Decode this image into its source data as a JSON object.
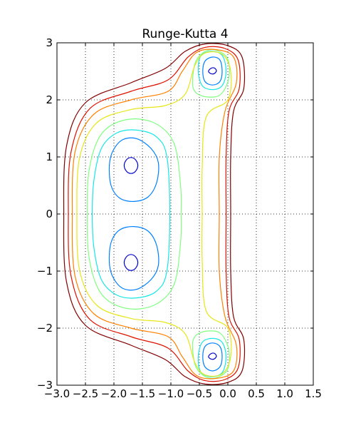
{
  "chart_data": {
    "type": "contour",
    "title": "Runge-Kutta 4",
    "xlabel": "",
    "ylabel": "",
    "xlim": [
      -3.0,
      1.5
    ],
    "ylim": [
      -3,
      3
    ],
    "grid": true,
    "grid_style": "dotted",
    "xticks": [
      -3.0,
      -2.5,
      -2.0,
      -1.5,
      -1.0,
      -0.5,
      0.0,
      0.5,
      1.0,
      1.5
    ],
    "xtick_labels": [
      "−3.0",
      "−2.5",
      "−2.0",
      "−1.5",
      "−1.0",
      "−0.5",
      "0.0",
      "0.5",
      "1.0",
      "1.5"
    ],
    "yticks": [
      -3,
      -2,
      -1,
      0,
      1,
      2,
      3
    ],
    "ytick_labels": [
      "−3",
      "−2",
      "−1",
      "0",
      "1",
      "2",
      "3"
    ],
    "colormap": "jet",
    "level_colors": [
      "#0000cd",
      "#0080ff",
      "#19e6e6",
      "#80ff80",
      "#e6e619",
      "#ff8000",
      "#dd1100",
      "#800000"
    ],
    "centers": [
      {
        "x": -1.7,
        "y": 0.85
      },
      {
        "x": -1.7,
        "y": -0.85
      },
      {
        "x": -0.27,
        "y": 2.5
      },
      {
        "x": -0.27,
        "y": -2.5
      }
    ],
    "contours": [
      {
        "level": 1,
        "color": "#0000cd",
        "points": [
          [
            -1.82,
            0.85
          ],
          [
            -1.78,
            0.95
          ],
          [
            -1.7,
            0.99
          ],
          [
            -1.62,
            0.95
          ],
          [
            -1.58,
            0.85
          ],
          [
            -1.62,
            0.75
          ],
          [
            -1.7,
            0.71
          ],
          [
            -1.78,
            0.75
          ]
        ]
      },
      {
        "level": 1,
        "color": "#0000cd",
        "points": [
          [
            -1.82,
            -0.85
          ],
          [
            -1.78,
            -0.75
          ],
          [
            -1.7,
            -0.71
          ],
          [
            -1.62,
            -0.75
          ],
          [
            -1.58,
            -0.85
          ],
          [
            -1.62,
            -0.95
          ],
          [
            -1.7,
            -0.99
          ],
          [
            -1.78,
            -0.95
          ]
        ]
      },
      {
        "level": 1,
        "color": "#0000cd",
        "points": [
          [
            -0.34,
            2.5
          ],
          [
            -0.3,
            2.55
          ],
          [
            -0.24,
            2.56
          ],
          [
            -0.2,
            2.51
          ],
          [
            -0.24,
            2.46
          ],
          [
            -0.3,
            2.46
          ]
        ]
      },
      {
        "level": 1,
        "color": "#0000cd",
        "points": [
          [
            -0.34,
            -2.5
          ],
          [
            -0.3,
            -2.45
          ],
          [
            -0.24,
            -2.44
          ],
          [
            -0.2,
            -2.49
          ],
          [
            -0.24,
            -2.54
          ],
          [
            -0.3,
            -2.54
          ]
        ]
      },
      {
        "level": 2,
        "color": "#0080ff",
        "points": [
          [
            -2.08,
            0.85
          ],
          [
            -2.02,
            1.1
          ],
          [
            -1.85,
            1.3
          ],
          [
            -1.6,
            1.32
          ],
          [
            -1.35,
            1.15
          ],
          [
            -1.22,
            0.9
          ],
          [
            -1.25,
            0.55
          ],
          [
            -1.4,
            0.3
          ],
          [
            -1.65,
            0.22
          ],
          [
            -1.9,
            0.28
          ],
          [
            -2.05,
            0.5
          ]
        ]
      },
      {
        "level": 2,
        "color": "#0080ff",
        "points": [
          [
            -2.08,
            -0.85
          ],
          [
            -2.05,
            -0.5
          ],
          [
            -1.9,
            -0.28
          ],
          [
            -1.65,
            -0.22
          ],
          [
            -1.4,
            -0.3
          ],
          [
            -1.25,
            -0.55
          ],
          [
            -1.22,
            -0.9
          ],
          [
            -1.35,
            -1.15
          ],
          [
            -1.6,
            -1.32
          ],
          [
            -1.85,
            -1.3
          ],
          [
            -2.02,
            -1.1
          ]
        ]
      },
      {
        "level": 2,
        "color": "#0080ff",
        "points": [
          [
            -0.44,
            2.5
          ],
          [
            -0.4,
            2.68
          ],
          [
            -0.27,
            2.75
          ],
          [
            -0.14,
            2.7
          ],
          [
            -0.1,
            2.5
          ],
          [
            -0.14,
            2.32
          ],
          [
            -0.27,
            2.26
          ],
          [
            -0.4,
            2.32
          ]
        ]
      },
      {
        "level": 2,
        "color": "#0080ff",
        "points": [
          [
            -0.44,
            -2.5
          ],
          [
            -0.4,
            -2.32
          ],
          [
            -0.27,
            -2.26
          ],
          [
            -0.14,
            -2.32
          ],
          [
            -0.1,
            -2.5
          ],
          [
            -0.14,
            -2.68
          ],
          [
            -0.27,
            -2.75
          ],
          [
            -0.4,
            -2.68
          ]
        ]
      },
      {
        "level": 3,
        "color": "#19e6e6",
        "points": [
          [
            -2.38,
            0.0
          ],
          [
            -2.35,
            0.6
          ],
          [
            -2.22,
            1.15
          ],
          [
            -1.95,
            1.42
          ],
          [
            -1.6,
            1.47
          ],
          [
            -1.25,
            1.35
          ],
          [
            -1.07,
            1.0
          ],
          [
            -1.02,
            0.0
          ],
          [
            -1.07,
            -1.0
          ],
          [
            -1.25,
            -1.35
          ],
          [
            -1.6,
            -1.47
          ],
          [
            -1.95,
            -1.42
          ],
          [
            -2.22,
            -1.15
          ],
          [
            -2.35,
            -0.6
          ]
        ]
      },
      {
        "level": 3,
        "color": "#19e6e6",
        "points": [
          [
            -0.52,
            2.5
          ],
          [
            -0.48,
            2.76
          ],
          [
            -0.3,
            2.85
          ],
          [
            -0.1,
            2.78
          ],
          [
            -0.03,
            2.5
          ],
          [
            -0.1,
            2.25
          ],
          [
            -0.27,
            2.18
          ],
          [
            -0.45,
            2.25
          ]
        ]
      },
      {
        "level": 3,
        "color": "#19e6e6",
        "points": [
          [
            -0.52,
            -2.5
          ],
          [
            -0.45,
            -2.25
          ],
          [
            -0.27,
            -2.18
          ],
          [
            -0.1,
            -2.25
          ],
          [
            -0.03,
            -2.5
          ],
          [
            -0.1,
            -2.78
          ],
          [
            -0.3,
            -2.85
          ],
          [
            -0.48,
            -2.76
          ]
        ]
      },
      {
        "level": 4,
        "color": "#80ff80",
        "points": [
          [
            -2.47,
            0.0
          ],
          [
            -2.43,
            0.8
          ],
          [
            -2.22,
            1.4
          ],
          [
            -1.8,
            1.65
          ],
          [
            -1.3,
            1.6
          ],
          [
            -0.95,
            1.25
          ],
          [
            -0.83,
            0.5
          ],
          [
            -0.82,
            0.0
          ],
          [
            -0.83,
            -0.5
          ],
          [
            -0.95,
            -1.25
          ],
          [
            -1.3,
            -1.6
          ],
          [
            -1.8,
            -1.65
          ],
          [
            -2.22,
            -1.4
          ],
          [
            -2.43,
            -0.8
          ]
        ]
      },
      {
        "level": 4,
        "color": "#80ff80",
        "points": [
          [
            -0.62,
            2.3
          ],
          [
            -0.55,
            2.7
          ],
          [
            -0.3,
            2.88
          ],
          [
            -0.02,
            2.75
          ],
          [
            0.02,
            2.4
          ],
          [
            -0.12,
            2.1
          ],
          [
            -0.35,
            2.05
          ],
          [
            -0.55,
            2.12
          ]
        ]
      },
      {
        "level": 4,
        "color": "#80ff80",
        "points": [
          [
            -0.62,
            -2.3
          ],
          [
            -0.55,
            -2.12
          ],
          [
            -0.35,
            -2.05
          ],
          [
            -0.12,
            -2.1
          ],
          [
            0.02,
            -2.4
          ],
          [
            -0.02,
            -2.75
          ],
          [
            -0.3,
            -2.88
          ],
          [
            -0.55,
            -2.7
          ]
        ]
      },
      {
        "level": 5,
        "color": "#e6e619",
        "points": [
          [
            -2.65,
            0.0
          ],
          [
            -2.6,
            1.0
          ],
          [
            -2.3,
            1.6
          ],
          [
            -1.7,
            1.83
          ],
          [
            -1.1,
            1.9
          ],
          [
            -0.75,
            2.1
          ],
          [
            -0.58,
            2.6
          ],
          [
            -0.4,
            2.82
          ],
          [
            -0.1,
            2.8
          ],
          [
            0.05,
            2.5
          ],
          [
            0.0,
            2.0
          ],
          [
            -0.38,
            1.7
          ],
          [
            -0.45,
            0.8
          ],
          [
            -0.45,
            0.0
          ],
          [
            -0.45,
            -0.8
          ],
          [
            -0.38,
            -1.7
          ],
          [
            0.0,
            -2.0
          ],
          [
            0.05,
            -2.5
          ],
          [
            -0.1,
            -2.8
          ],
          [
            -0.4,
            -2.82
          ],
          [
            -0.58,
            -2.6
          ],
          [
            -0.75,
            -2.1
          ],
          [
            -1.1,
            -1.9
          ],
          [
            -1.7,
            -1.83
          ],
          [
            -2.3,
            -1.6
          ],
          [
            -2.6,
            -1.0
          ]
        ]
      },
      {
        "level": 6,
        "color": "#ff8000",
        "points": [
          [
            -2.73,
            0.0
          ],
          [
            -2.68,
            1.1
          ],
          [
            -2.35,
            1.75
          ],
          [
            -1.7,
            2.0
          ],
          [
            -1.05,
            2.15
          ],
          [
            -0.8,
            2.5
          ],
          [
            -0.55,
            2.83
          ],
          [
            -0.2,
            2.88
          ],
          [
            0.1,
            2.75
          ],
          [
            0.15,
            2.3
          ],
          [
            -0.05,
            1.8
          ],
          [
            -0.15,
            1.0
          ],
          [
            -0.15,
            0.0
          ],
          [
            -0.15,
            -1.0
          ],
          [
            -0.05,
            -1.8
          ],
          [
            0.15,
            -2.3
          ],
          [
            0.1,
            -2.75
          ],
          [
            -0.2,
            -2.88
          ],
          [
            -0.55,
            -2.83
          ],
          [
            -0.8,
            -2.5
          ],
          [
            -1.05,
            -2.15
          ],
          [
            -1.7,
            -2.0
          ],
          [
            -2.35,
            -1.75
          ],
          [
            -2.68,
            -1.1
          ]
        ]
      },
      {
        "level": 7,
        "color": "#dd1100",
        "points": [
          [
            -2.8,
            0.0
          ],
          [
            -2.75,
            1.1
          ],
          [
            -2.42,
            1.85
          ],
          [
            -1.7,
            2.15
          ],
          [
            -1.05,
            2.35
          ],
          [
            -0.7,
            2.75
          ],
          [
            -0.4,
            2.92
          ],
          [
            -0.05,
            2.9
          ],
          [
            0.18,
            2.7
          ],
          [
            0.2,
            2.2
          ],
          [
            0.02,
            1.8
          ],
          [
            -0.03,
            1.0
          ],
          [
            -0.03,
            0.0
          ],
          [
            -0.03,
            -1.0
          ],
          [
            0.02,
            -1.8
          ],
          [
            0.2,
            -2.2
          ],
          [
            0.18,
            -2.7
          ],
          [
            -0.05,
            -2.9
          ],
          [
            -0.4,
            -2.92
          ],
          [
            -0.7,
            -2.75
          ],
          [
            -1.05,
            -2.35
          ],
          [
            -1.7,
            -2.15
          ],
          [
            -2.42,
            -1.85
          ],
          [
            -2.75,
            -1.1
          ]
        ]
      },
      {
        "level": 8,
        "color": "#800000",
        "points": [
          [
            -2.88,
            0.0
          ],
          [
            -2.83,
            1.2
          ],
          [
            -2.5,
            1.95
          ],
          [
            -1.7,
            2.3
          ],
          [
            -1.1,
            2.55
          ],
          [
            -0.75,
            2.85
          ],
          [
            -0.4,
            2.98
          ],
          [
            0.0,
            2.95
          ],
          [
            0.25,
            2.75
          ],
          [
            0.28,
            2.2
          ],
          [
            0.1,
            1.8
          ],
          [
            0.05,
            1.0
          ],
          [
            0.05,
            0.0
          ],
          [
            0.05,
            -1.0
          ],
          [
            0.1,
            -1.8
          ],
          [
            0.28,
            -2.2
          ],
          [
            0.25,
            -2.75
          ],
          [
            0.0,
            -2.95
          ],
          [
            -0.4,
            -2.98
          ],
          [
            -0.75,
            -2.85
          ],
          [
            -1.1,
            -2.55
          ],
          [
            -1.7,
            -2.3
          ],
          [
            -2.5,
            -1.95
          ],
          [
            -2.83,
            -1.2
          ]
        ]
      }
    ]
  }
}
